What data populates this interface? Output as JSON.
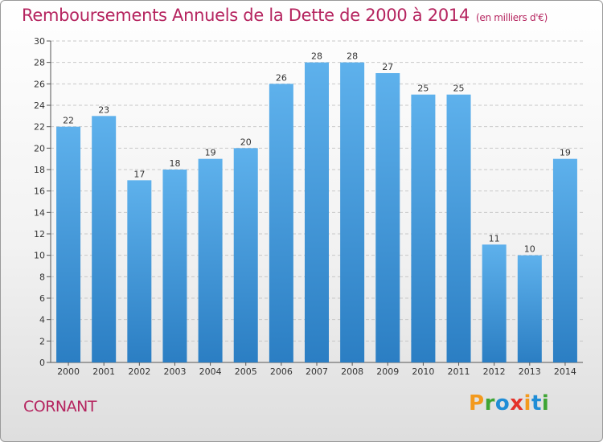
{
  "header": {
    "title": "Remboursements Annuels de la Dette de 2000 à 2014",
    "subtitle": "(en milliers d'€)"
  },
  "footer": {
    "place": "CORNANT",
    "logo": "Proxiti"
  },
  "colors": {
    "bar_top": "#5eb1ec",
    "bar_bottom": "#2b7ec3",
    "title": "#b5245f",
    "logo": [
      "#f39a1e",
      "#3fa535",
      "#1f8dd6",
      "#e4322b",
      "#f39a1e",
      "#1f8dd6",
      "#3fa535"
    ]
  },
  "chart_data": {
    "type": "bar",
    "title": "Remboursements Annuels de la Dette de 2000 à 2014",
    "xlabel": "",
    "ylabel": "",
    "ylim": [
      0,
      30
    ],
    "yticks": [
      0,
      2,
      4,
      6,
      8,
      10,
      12,
      14,
      16,
      18,
      20,
      22,
      24,
      26,
      28,
      30
    ],
    "grid": true,
    "categories": [
      "2000",
      "2001",
      "2002",
      "2003",
      "2004",
      "2005",
      "2006",
      "2007",
      "2008",
      "2009",
      "2010",
      "2011",
      "2012",
      "2013",
      "2014"
    ],
    "values": [
      22,
      23,
      17,
      18,
      19,
      20,
      26,
      28,
      28,
      27,
      25,
      25,
      11,
      10,
      19
    ]
  }
}
